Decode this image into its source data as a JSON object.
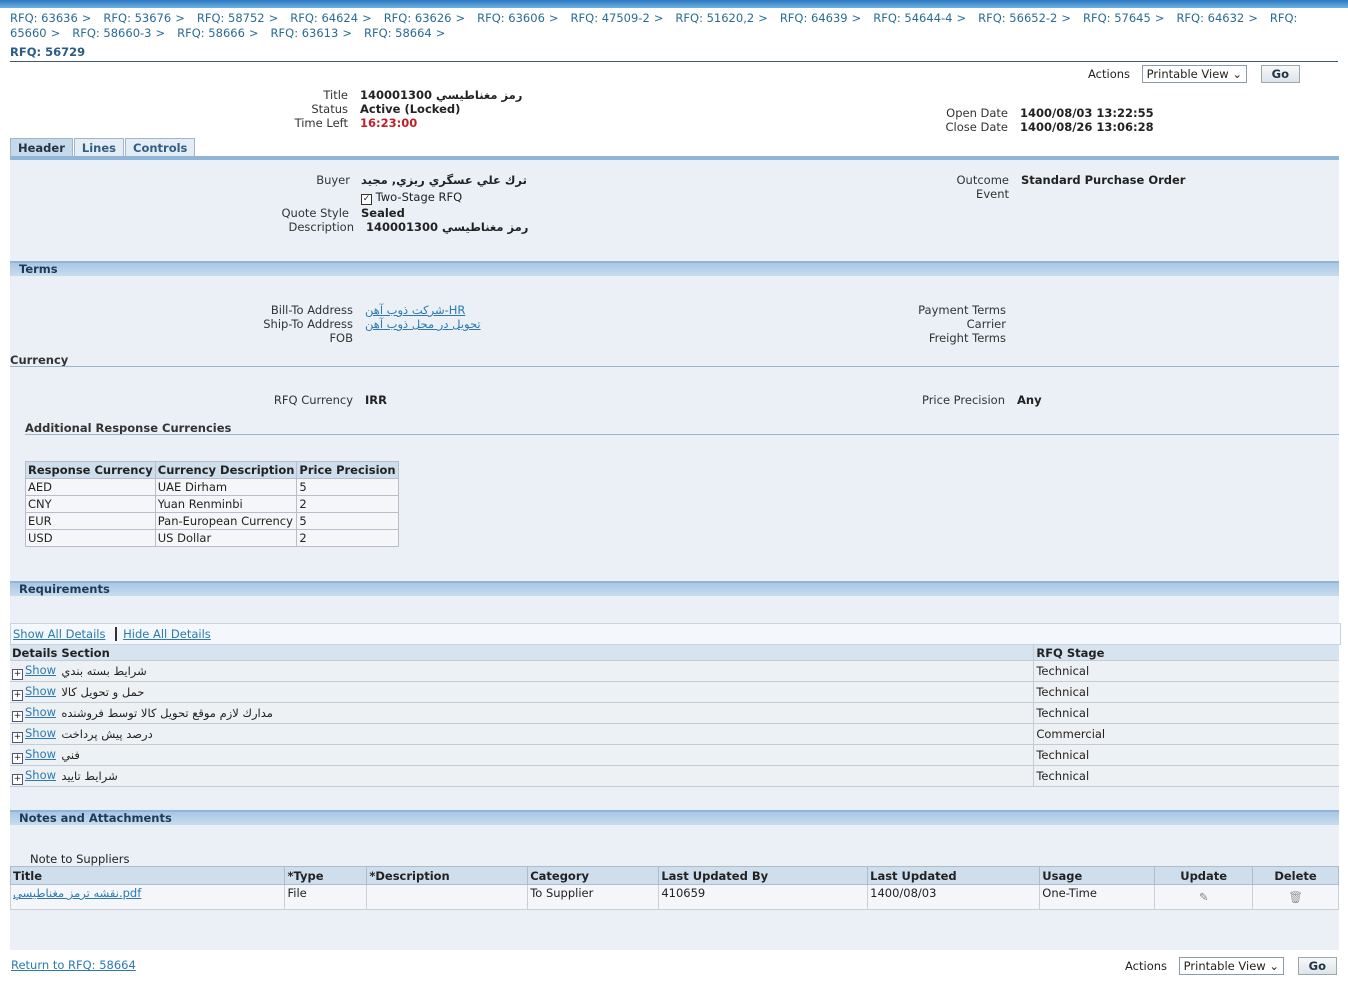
{
  "breadcrumbs": [
    "RFQ: 63636",
    "RFQ: 53676",
    "RFQ: 58752",
    "RFQ: 64624",
    "RFQ: 63626",
    "RFQ: 63606",
    "RFQ: 47509-2",
    "RFQ: 51620,2",
    "RFQ: 64639",
    "RFQ: 54644-4",
    "RFQ: 56652-2",
    "RFQ: 57645",
    "RFQ: 64632",
    "RFQ: 65660",
    "RFQ: 58660-3",
    "RFQ: 58666",
    "RFQ: 63613",
    "RFQ: 58664"
  ],
  "page_title": "RFQ: 56729",
  "actions": {
    "label": "Actions",
    "select": "Printable View",
    "go": "Go"
  },
  "summary": {
    "title_label": "Title",
    "title": "140001300 رمز مغناطيسي",
    "status_label": "Status",
    "status": "Active (Locked)",
    "time_left_label": "Time Left",
    "time_left": "16:23:00",
    "open_label": "Open Date",
    "open": "1400/08/03 13:22:55",
    "close_label": "Close Date",
    "close": "1400/08/26 13:06:28"
  },
  "tabs": [
    "Header",
    "Lines",
    "Controls"
  ],
  "header": {
    "buyer_label": "Buyer",
    "buyer": "ترك علي عسگري ريزي, مجيد",
    "two_stage": "Two-Stage RFQ",
    "quote_style_label": "Quote Style",
    "quote_style": "Sealed",
    "description_label": "Description",
    "description": "140001300 رمز مغناطيسي",
    "outcome_label": "Outcome",
    "outcome": "Standard Purchase Order",
    "event_label": "Event"
  },
  "terms": {
    "title": "Terms",
    "bill_to_label": "Bill-To Address",
    "bill_to": "شركت ذوب آهن-HR",
    "ship_to_label": "Ship-To Address",
    "ship_to": "تحويل در محل ذوب آهن",
    "fob_label": "FOB",
    "payment_label": "Payment Terms",
    "carrier_label": "Carrier",
    "freight_label": "Freight Terms"
  },
  "currency": {
    "title": "Currency",
    "rfq_currency_label": "RFQ Currency",
    "rfq_currency": "IRR",
    "precision_label": "Price Precision",
    "precision": "Any",
    "additional_title": "Additional Response Currencies",
    "columns": [
      "Response Currency",
      "Currency Description",
      "Price Precision"
    ],
    "rows": [
      [
        "AED",
        "UAE Dirham",
        "5"
      ],
      [
        "CNY",
        "Yuan Renminbi",
        "2"
      ],
      [
        "EUR",
        "Pan-European Currency",
        "5"
      ],
      [
        "USD",
        "US Dollar",
        "2"
      ]
    ]
  },
  "requirements": {
    "title": "Requirements",
    "show_all": "Show All Details",
    "hide_all": "Hide All Details",
    "columns": [
      "Details",
      "Section",
      "RFQ Stage"
    ],
    "show_label": "Show",
    "rows": [
      [
        "شرايط بسته بندي",
        "Technical"
      ],
      [
        "حمل و تحويل كالا",
        "Technical"
      ],
      [
        "مدارك لازم موقع تحويل كالا توسط فروشنده",
        "Technical"
      ],
      [
        "درصد پيش پرداخت",
        "Commercial"
      ],
      [
        "فني",
        "Technical"
      ],
      [
        "شرايط تاييد",
        "Technical"
      ]
    ]
  },
  "notes": {
    "title": "Notes and Attachments",
    "note_label": "Note to Suppliers",
    "columns": [
      "Title",
      "*Type",
      "*Description",
      "Category",
      "Last Updated By",
      "Last Updated",
      "Usage",
      "Update",
      "Delete"
    ],
    "rows": [
      [
        "نقشه ترمز مغناطيسي.pdf",
        "File",
        "",
        "To Supplier",
        "410659",
        "1400/08/03",
        "One-Time"
      ]
    ]
  },
  "return_link": "Return to RFQ: 58664"
}
